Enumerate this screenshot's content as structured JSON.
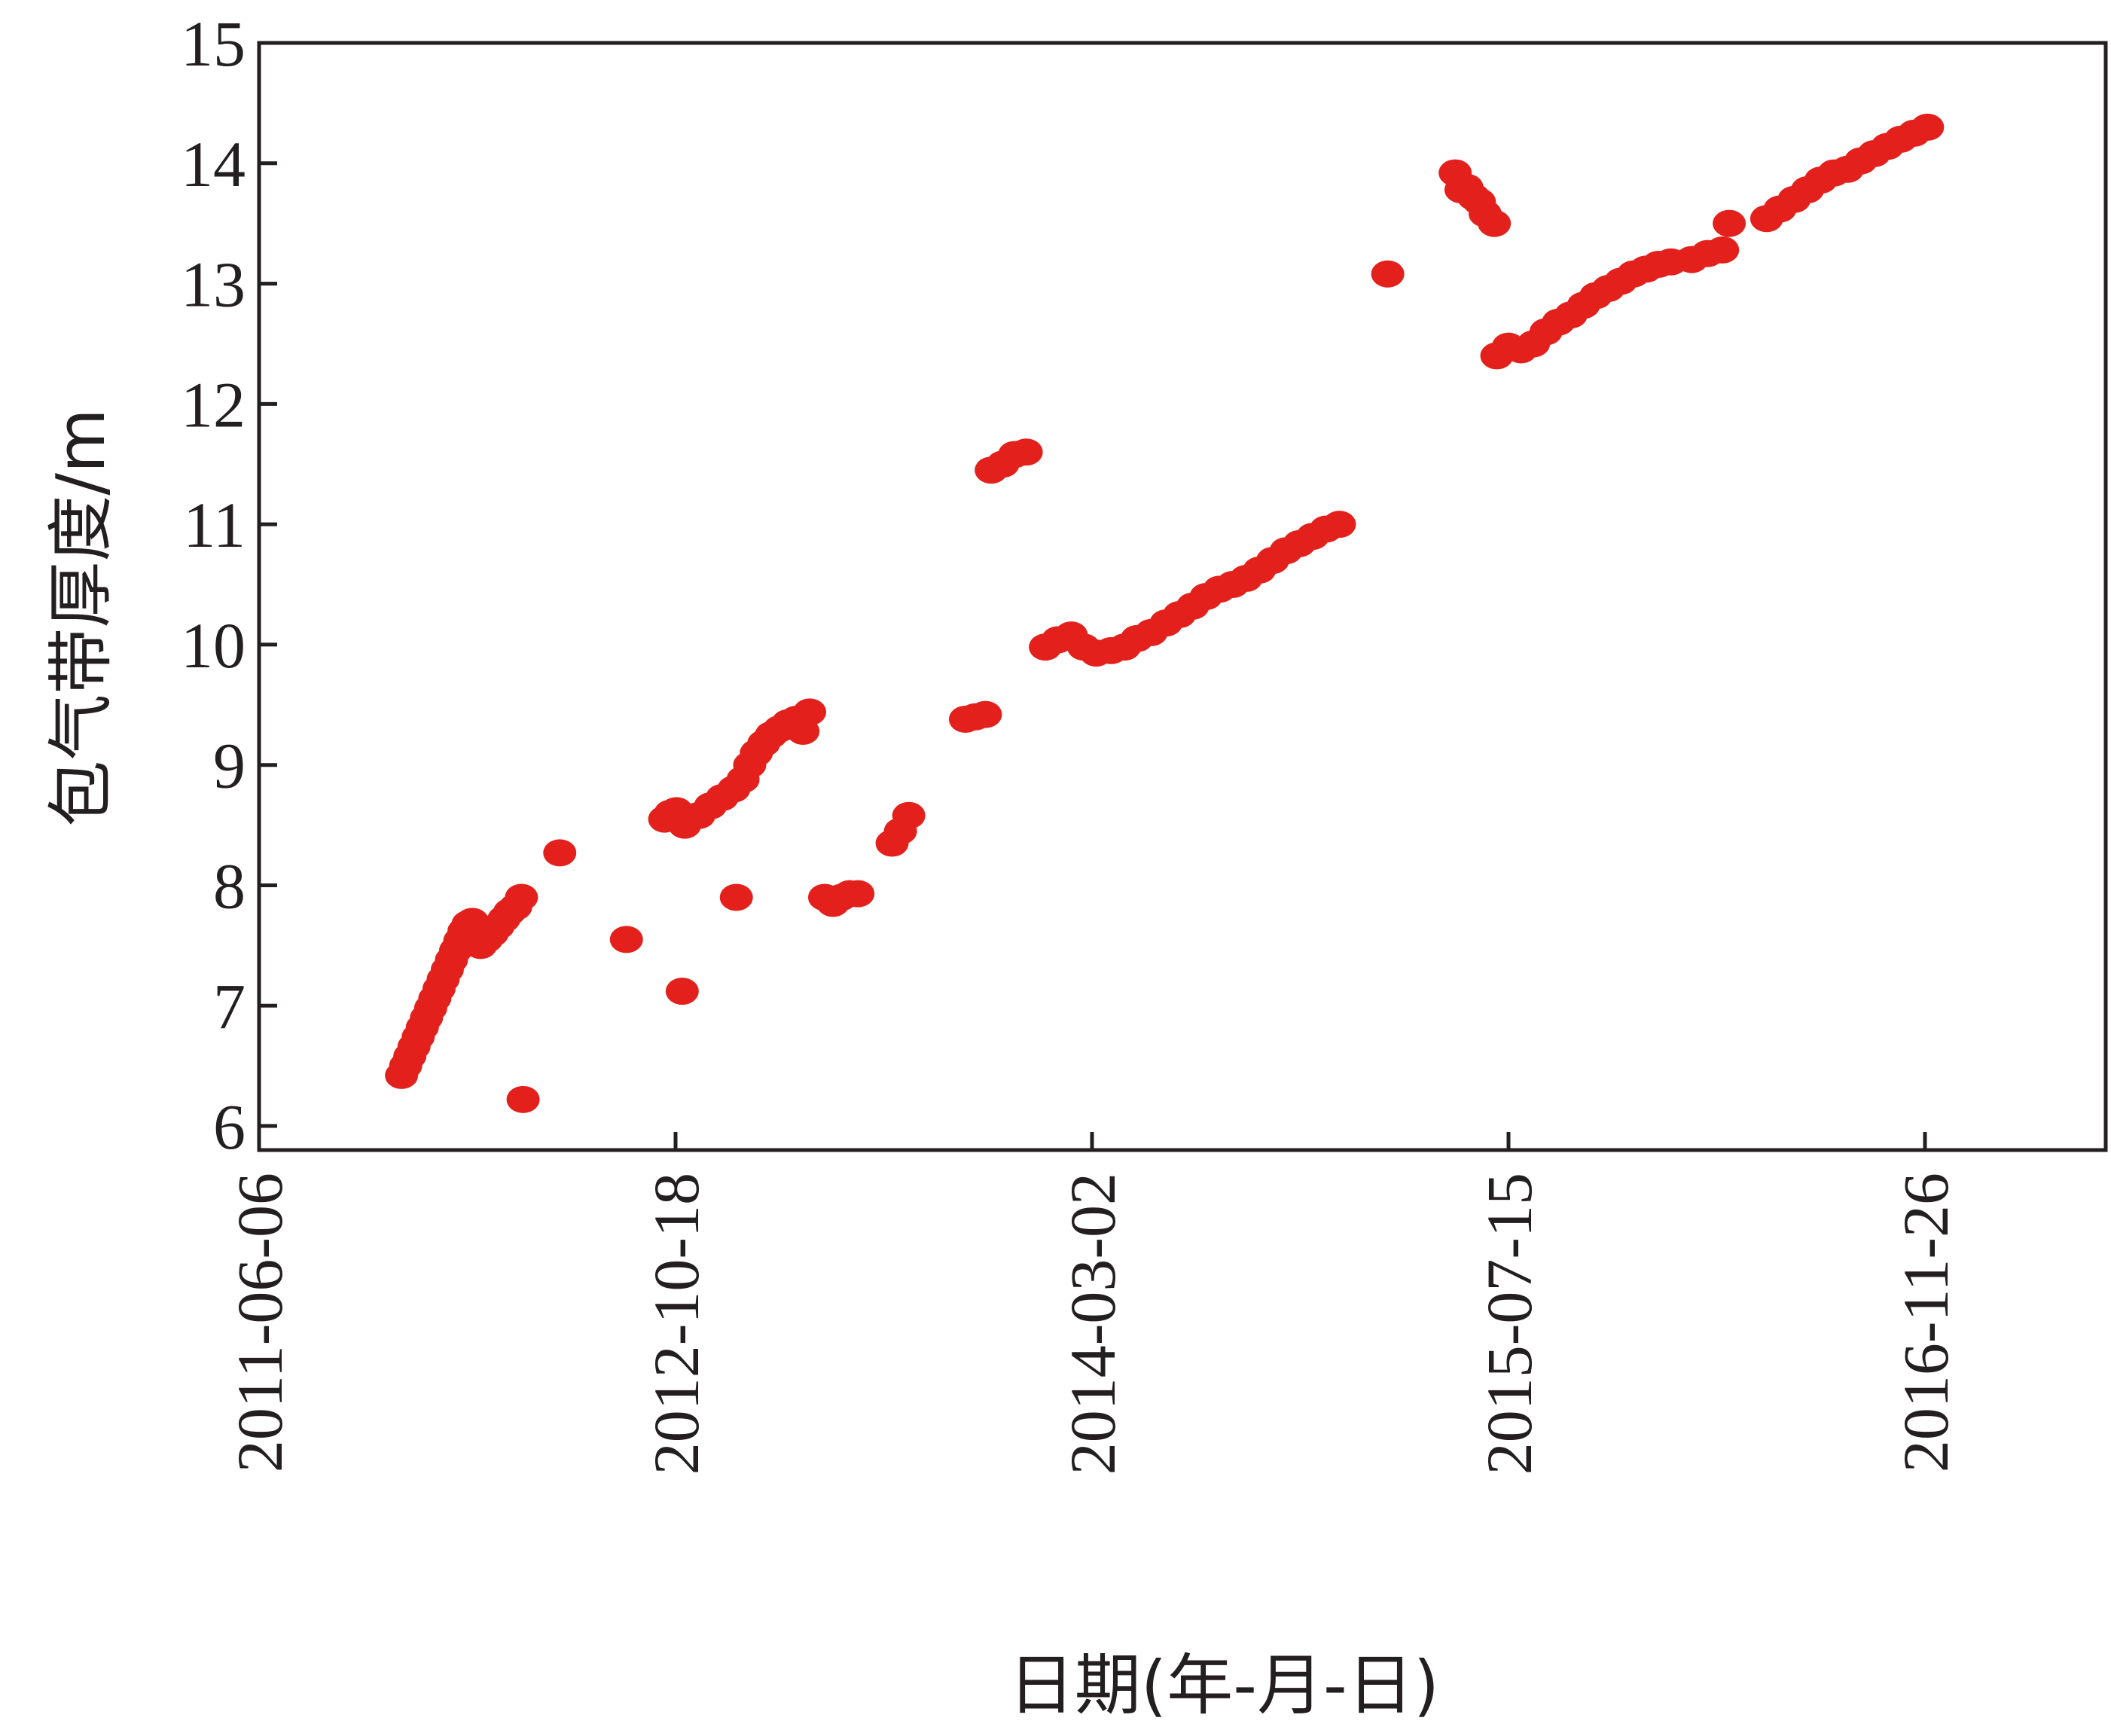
{
  "chart_data": {
    "type": "scatter",
    "title": "",
    "xlabel": "日期(年-月-日)",
    "ylabel": "包气带厚度/m",
    "x_type": "date",
    "xlim": [
      "2011-06-06",
      "2017-07-01"
    ],
    "ylim": [
      5.8,
      15
    ],
    "x_ticks": [
      "2011-06-06",
      "2012-10-18",
      "2014-03-02",
      "2015-07-15",
      "2016-11-26"
    ],
    "y_ticks": [
      6,
      7,
      8,
      9,
      10,
      11,
      12,
      13,
      14,
      15
    ],
    "grid": false,
    "legend": "none",
    "marker_color": "#e3201b",
    "points": [
      {
        "x": "2011-11-24",
        "y": 6.42
      },
      {
        "x": "2011-11-29",
        "y": 6.5
      },
      {
        "x": "2011-12-04",
        "y": 6.58
      },
      {
        "x": "2011-12-09",
        "y": 6.66
      },
      {
        "x": "2011-12-14",
        "y": 6.74
      },
      {
        "x": "2011-12-19",
        "y": 6.82
      },
      {
        "x": "2011-12-24",
        "y": 6.9
      },
      {
        "x": "2011-12-29",
        "y": 6.98
      },
      {
        "x": "2012-01-03",
        "y": 7.06
      },
      {
        "x": "2012-01-08",
        "y": 7.14
      },
      {
        "x": "2012-01-13",
        "y": 7.22
      },
      {
        "x": "2012-01-18",
        "y": 7.3
      },
      {
        "x": "2012-01-23",
        "y": 7.38
      },
      {
        "x": "2012-01-28",
        "y": 7.46
      },
      {
        "x": "2012-02-02",
        "y": 7.54
      },
      {
        "x": "2012-02-07",
        "y": 7.62
      },
      {
        "x": "2012-02-12",
        "y": 7.68
      },
      {
        "x": "2012-02-17",
        "y": 7.7
      },
      {
        "x": "2012-02-22",
        "y": 7.66
      },
      {
        "x": "2012-02-27",
        "y": 7.5
      },
      {
        "x": "2012-03-05",
        "y": 7.55
      },
      {
        "x": "2012-03-12",
        "y": 7.6
      },
      {
        "x": "2012-03-19",
        "y": 7.66
      },
      {
        "x": "2012-03-26",
        "y": 7.72
      },
      {
        "x": "2012-04-02",
        "y": 7.78
      },
      {
        "x": "2012-04-09",
        "y": 7.82
      },
      {
        "x": "2012-04-16",
        "y": 7.9
      },
      {
        "x": "2012-04-18",
        "y": 6.22
      },
      {
        "x": "2012-06-01",
        "y": 8.27
      },
      {
        "x": "2012-08-20",
        "y": 7.55
      },
      {
        "x": "2012-10-05",
        "y": 8.55
      },
      {
        "x": "2012-10-12",
        "y": 8.6
      },
      {
        "x": "2012-10-19",
        "y": 8.62
      },
      {
        "x": "2012-10-26",
        "y": 7.12
      },
      {
        "x": "2012-10-29",
        "y": 8.5
      },
      {
        "x": "2012-11-15",
        "y": 8.58
      },
      {
        "x": "2012-11-29",
        "y": 8.66
      },
      {
        "x": "2012-12-13",
        "y": 8.73
      },
      {
        "x": "2012-12-27",
        "y": 8.8
      },
      {
        "x": "2013-01-07",
        "y": 8.88
      },
      {
        "x": "2013-01-15",
        "y": 9.0
      },
      {
        "x": "2013-01-23",
        "y": 9.1
      },
      {
        "x": "2013-02-01",
        "y": 9.18
      },
      {
        "x": "2013-02-10",
        "y": 9.25
      },
      {
        "x": "2013-02-20",
        "y": 9.3
      },
      {
        "x": "2013-03-02",
        "y": 9.35
      },
      {
        "x": "2013-03-12",
        "y": 9.38
      },
      {
        "x": "2013-03-20",
        "y": 9.28
      },
      {
        "x": "2013-03-28",
        "y": 9.44
      },
      {
        "x": "2012-12-30",
        "y": 7.9
      },
      {
        "x": "2013-04-15",
        "y": 7.9
      },
      {
        "x": "2013-04-25",
        "y": 7.85
      },
      {
        "x": "2013-05-05",
        "y": 7.9
      },
      {
        "x": "2013-05-15",
        "y": 7.93
      },
      {
        "x": "2013-05-25",
        "y": 7.93
      },
      {
        "x": "2013-07-05",
        "y": 8.35
      },
      {
        "x": "2013-07-15",
        "y": 8.45
      },
      {
        "x": "2013-07-25",
        "y": 8.58
      },
      {
        "x": "2013-10-01",
        "y": 9.38
      },
      {
        "x": "2013-10-13",
        "y": 9.4
      },
      {
        "x": "2013-10-25",
        "y": 9.42
      },
      {
        "x": "2013-11-01",
        "y": 11.45
      },
      {
        "x": "2013-11-15",
        "y": 11.5
      },
      {
        "x": "2013-11-29",
        "y": 11.58
      },
      {
        "x": "2013-12-13",
        "y": 11.6
      },
      {
        "x": "2014-01-05",
        "y": 9.98
      },
      {
        "x": "2014-01-20",
        "y": 10.04
      },
      {
        "x": "2014-02-05",
        "y": 10.08
      },
      {
        "x": "2014-02-20",
        "y": 9.98
      },
      {
        "x": "2014-03-07",
        "y": 9.93
      },
      {
        "x": "2014-03-25",
        "y": 9.95
      },
      {
        "x": "2014-04-10",
        "y": 9.98
      },
      {
        "x": "2014-04-25",
        "y": 10.05
      },
      {
        "x": "2014-05-12",
        "y": 10.1
      },
      {
        "x": "2014-05-30",
        "y": 10.18
      },
      {
        "x": "2014-06-15",
        "y": 10.25
      },
      {
        "x": "2014-07-01",
        "y": 10.32
      },
      {
        "x": "2014-07-17",
        "y": 10.4
      },
      {
        "x": "2014-08-02",
        "y": 10.46
      },
      {
        "x": "2014-08-18",
        "y": 10.5
      },
      {
        "x": "2014-09-03",
        "y": 10.55
      },
      {
        "x": "2014-09-19",
        "y": 10.62
      },
      {
        "x": "2014-10-05",
        "y": 10.7
      },
      {
        "x": "2014-10-21",
        "y": 10.78
      },
      {
        "x": "2014-11-06",
        "y": 10.84
      },
      {
        "x": "2014-11-22",
        "y": 10.9
      },
      {
        "x": "2014-12-08",
        "y": 10.96
      },
      {
        "x": "2014-12-24",
        "y": 11.0
      },
      {
        "x": "2015-02-20",
        "y": 13.08
      },
      {
        "x": "2015-05-12",
        "y": 13.92
      },
      {
        "x": "2015-05-19",
        "y": 13.78
      },
      {
        "x": "2015-05-26",
        "y": 13.8
      },
      {
        "x": "2015-06-03",
        "y": 13.72
      },
      {
        "x": "2015-06-10",
        "y": 13.68
      },
      {
        "x": "2015-06-17",
        "y": 13.58
      },
      {
        "x": "2015-06-28",
        "y": 13.5
      },
      {
        "x": "2015-07-01",
        "y": 12.4
      },
      {
        "x": "2015-07-15",
        "y": 12.48
      },
      {
        "x": "2015-07-30",
        "y": 12.45
      },
      {
        "x": "2015-08-14",
        "y": 12.5
      },
      {
        "x": "2015-08-29",
        "y": 12.6
      },
      {
        "x": "2015-09-13",
        "y": 12.68
      },
      {
        "x": "2015-09-28",
        "y": 12.74
      },
      {
        "x": "2015-10-13",
        "y": 12.82
      },
      {
        "x": "2015-10-28",
        "y": 12.9
      },
      {
        "x": "2015-11-12",
        "y": 12.96
      },
      {
        "x": "2015-11-27",
        "y": 13.02
      },
      {
        "x": "2015-12-12",
        "y": 13.08
      },
      {
        "x": "2015-12-27",
        "y": 13.12
      },
      {
        "x": "2016-01-11",
        "y": 13.16
      },
      {
        "x": "2016-01-26",
        "y": 13.18
      },
      {
        "x": "2016-02-20",
        "y": 13.2
      },
      {
        "x": "2016-03-10",
        "y": 13.25
      },
      {
        "x": "2016-03-28",
        "y": 13.28
      },
      {
        "x": "2016-04-05",
        "y": 13.5
      },
      {
        "x": "2016-05-20",
        "y": 13.54
      },
      {
        "x": "2016-06-05",
        "y": 13.62
      },
      {
        "x": "2016-06-22",
        "y": 13.7
      },
      {
        "x": "2016-07-08",
        "y": 13.78
      },
      {
        "x": "2016-07-24",
        "y": 13.86
      },
      {
        "x": "2016-08-09",
        "y": 13.92
      },
      {
        "x": "2016-08-25",
        "y": 13.95
      },
      {
        "x": "2016-09-10",
        "y": 14.02
      },
      {
        "x": "2016-09-26",
        "y": 14.08
      },
      {
        "x": "2016-10-12",
        "y": 14.14
      },
      {
        "x": "2016-10-28",
        "y": 14.2
      },
      {
        "x": "2016-11-13",
        "y": 14.25
      },
      {
        "x": "2016-11-29",
        "y": 14.3
      }
    ]
  }
}
